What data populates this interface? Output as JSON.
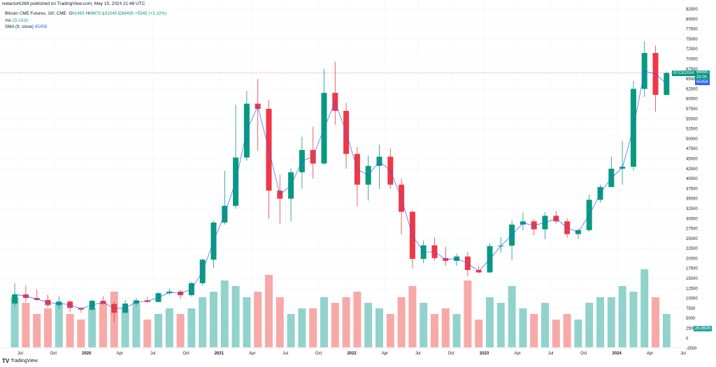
{
  "header": {
    "published": "redactor6269 published on TradingView.com, May 15, 2024 21:48 UTC"
  },
  "legend": {
    "symbol": "Bitcoin CME Futures, 1W, CME",
    "o_label": "O",
    "o": "61465",
    "h_label": "H",
    "h": "66870",
    "l_label": "L",
    "l": "61045",
    "c_label": "C",
    "c": "66495",
    "change": "+5545 (+9.10%)",
    "vol_label": "Vol",
    "vol": "25.962K",
    "sma_label": "SMA (9, close)",
    "sma": "65458"
  },
  "price_tags": {
    "symbol": "BTCK2024",
    "last": "66495",
    "countdown": "2d 0h",
    "sma": "65458",
    "vol": "25.962K"
  },
  "footer": {
    "brand": "TradingView"
  },
  "colors": {
    "up": "#089981",
    "down": "#f23645",
    "vol_up": "#92d2cc",
    "vol_down": "#f7a9a7",
    "sma": "#2962ff",
    "last_line": "#f23645"
  },
  "chart_data": {
    "type": "candlestick",
    "interval_note": "approximated monthly from weekly chart",
    "y_axis": {
      "min": -2500,
      "max": 82500,
      "step": 2500,
      "position": "right"
    },
    "x_ticks": [
      "Jul",
      "Oct",
      "2020",
      "Apr",
      "Jul",
      "Oct",
      "2021",
      "Apr",
      "Jul",
      "Oct",
      "2022",
      "Apr",
      "Jul",
      "Oct",
      "2023",
      "Apr",
      "Jul",
      "Oct",
      "2024",
      "Apr",
      "Jul"
    ],
    "y_ticks": [
      "82500",
      "80000",
      "77500",
      "75000",
      "72500",
      "70000",
      "67500",
      "65000",
      "62500",
      "60000",
      "57500",
      "55000",
      "52500",
      "50000",
      "47500",
      "45000",
      "42500",
      "40000",
      "37500",
      "35000",
      "32500",
      "30000",
      "27500",
      "25000",
      "22500",
      "20000",
      "17500",
      "15000",
      "12500",
      "10000",
      "7500",
      "5000",
      "2500",
      "0",
      "-2500"
    ],
    "x_range": [
      "2019-06",
      "2024-07"
    ],
    "candles": [
      [
        "2019-06",
        8700,
        13800,
        8000,
        11000,
        9
      ],
      [
        "2019-07",
        11000,
        13200,
        9100,
        10100,
        8
      ],
      [
        "2019-08",
        10100,
        12300,
        9400,
        9600,
        6
      ],
      [
        "2019-09",
        9600,
        10900,
        7800,
        8300,
        7
      ],
      [
        "2019-10",
        8300,
        10600,
        7300,
        9200,
        8
      ],
      [
        "2019-11",
        9200,
        9500,
        6500,
        7600,
        6
      ],
      [
        "2019-12",
        7600,
        7800,
        6400,
        7200,
        5
      ],
      [
        "2020-01",
        7200,
        9600,
        6900,
        9400,
        7
      ],
      [
        "2020-02",
        9400,
        10500,
        8500,
        8600,
        8
      ],
      [
        "2020-03",
        8600,
        9200,
        3900,
        6400,
        10
      ],
      [
        "2020-04",
        6400,
        9500,
        6200,
        8700,
        7
      ],
      [
        "2020-05",
        8700,
        10100,
        8100,
        9500,
        8
      ],
      [
        "2020-06",
        9500,
        10400,
        8900,
        9100,
        5
      ],
      [
        "2020-07",
        9100,
        11500,
        9000,
        11300,
        6
      ],
      [
        "2020-08",
        11300,
        12500,
        10900,
        11700,
        7
      ],
      [
        "2020-09",
        11700,
        12100,
        9900,
        10800,
        6
      ],
      [
        "2020-10",
        10800,
        14100,
        10400,
        13800,
        7
      ],
      [
        "2020-11",
        13800,
        19900,
        13200,
        19700,
        9
      ],
      [
        "2020-12",
        19700,
        29400,
        17600,
        29000,
        10
      ],
      [
        "2021-01",
        29000,
        42000,
        28500,
        33200,
        12
      ],
      [
        "2021-02",
        33200,
        58500,
        32500,
        45300,
        11
      ],
      [
        "2021-03",
        45300,
        62000,
        44500,
        58800,
        9
      ],
      [
        "2021-04",
        58800,
        65000,
        47000,
        57500,
        10
      ],
      [
        "2021-05",
        57500,
        59700,
        30000,
        37000,
        13
      ],
      [
        "2021-06",
        37000,
        41000,
        28700,
        35000,
        9
      ],
      [
        "2021-07",
        35000,
        42500,
        29300,
        41600,
        6
      ],
      [
        "2021-08",
        41600,
        50500,
        37500,
        47200,
        7
      ],
      [
        "2021-09",
        47200,
        53000,
        40000,
        43800,
        7
      ],
      [
        "2021-10",
        43800,
        67500,
        43500,
        61500,
        9
      ],
      [
        "2021-11",
        61500,
        69300,
        53500,
        57000,
        8
      ],
      [
        "2021-12",
        57000,
        59000,
        42500,
        46200,
        9
      ],
      [
        "2022-01",
        46200,
        48000,
        33000,
        38500,
        10
      ],
      [
        "2022-02",
        38500,
        45800,
        34500,
        43200,
        8
      ],
      [
        "2022-03",
        43200,
        48500,
        37500,
        45500,
        7
      ],
      [
        "2022-04",
        45500,
        47500,
        37500,
        38500,
        6
      ],
      [
        "2022-05",
        38500,
        40000,
        26000,
        31700,
        9
      ],
      [
        "2022-06",
        31700,
        32000,
        17500,
        19900,
        11
      ],
      [
        "2022-07",
        19900,
        24500,
        18800,
        23300,
        8
      ],
      [
        "2022-08",
        23300,
        25300,
        19500,
        20100,
        6
      ],
      [
        "2022-09",
        20100,
        22900,
        18200,
        19400,
        7
      ],
      [
        "2022-10",
        19400,
        21200,
        18100,
        20500,
        6
      ],
      [
        "2022-11",
        20500,
        21700,
        15500,
        17100,
        12
      ],
      [
        "2022-12",
        17100,
        18100,
        16300,
        16500,
        5
      ],
      [
        "2023-01",
        16500,
        23800,
        16400,
        23100,
        9
      ],
      [
        "2023-02",
        23100,
        25400,
        21400,
        23200,
        8
      ],
      [
        "2023-03",
        23200,
        29500,
        19500,
        28500,
        11
      ],
      [
        "2023-04",
        28500,
        31500,
        27000,
        29300,
        7
      ],
      [
        "2023-05",
        29300,
        29800,
        25800,
        27300,
        6
      ],
      [
        "2023-06",
        27300,
        31600,
        24800,
        30700,
        8
      ],
      [
        "2023-07",
        30700,
        31900,
        28800,
        29300,
        5
      ],
      [
        "2023-08",
        29300,
        30100,
        25200,
        26100,
        6
      ],
      [
        "2023-09",
        26100,
        27500,
        24900,
        27100,
        5
      ],
      [
        "2023-10",
        27100,
        36000,
        26700,
        34700,
        8
      ],
      [
        "2023-11",
        34700,
        38500,
        34000,
        37900,
        9
      ],
      [
        "2023-12",
        37900,
        45500,
        37800,
        42500,
        9
      ],
      [
        "2024-01",
        42500,
        49500,
        38500,
        43000,
        11
      ],
      [
        "2024-02",
        43000,
        64500,
        42000,
        62500,
        10
      ],
      [
        "2024-03",
        62500,
        74500,
        60500,
        71500,
        14
      ],
      [
        "2024-04",
        71500,
        73300,
        56800,
        61000,
        9
      ],
      [
        "2024-05",
        61000,
        66870,
        61045,
        66495,
        6
      ]
    ],
    "candle_fields": [
      "date",
      "open",
      "high",
      "low",
      "close",
      "volume_thousands"
    ],
    "last_price": 66495,
    "sma_period": 9
  }
}
